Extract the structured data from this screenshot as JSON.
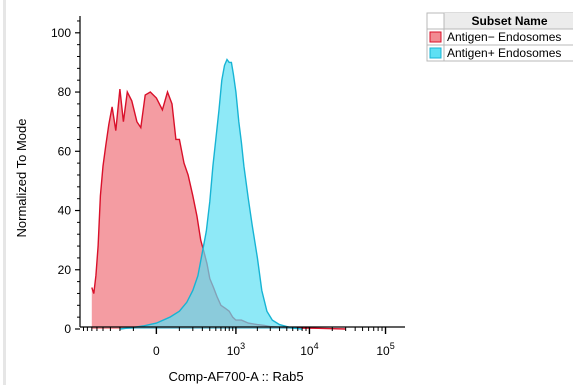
{
  "chart_data": {
    "type": "area",
    "title": "",
    "xlabel": "Comp-AF700-A :: Rab5",
    "ylabel": "Normalized To Mode",
    "xscale": "biexponential",
    "ylim": [
      0,
      105
    ],
    "x_tick_labels": [
      "0",
      "10",
      "10",
      "10"
    ],
    "x_tick_exponents": [
      "",
      "3",
      "4",
      "5"
    ],
    "x_tick_values": [
      0,
      1000,
      10000,
      100000
    ],
    "y_tick_labels": [
      "0",
      "20",
      "40",
      "60",
      "80",
      "100"
    ],
    "y_tick_values": [
      0,
      20,
      40,
      60,
      80,
      100
    ],
    "legend_header": "Subset Name",
    "legend_position": "top-right",
    "series": [
      {
        "name": "Antigen− Endosomes",
        "fill": "#f28b92",
        "stroke": "#d9102a",
        "x": [
          -600,
          -560,
          -520,
          -480,
          -440,
          -400,
          -360,
          -320,
          -280,
          -240,
          -200,
          -170,
          -140,
          -110,
          -80,
          -60,
          -40,
          -20,
          0,
          20,
          40,
          60,
          80,
          100,
          130,
          160,
          200,
          240,
          280,
          320,
          360,
          400,
          460,
          520,
          600,
          700,
          800,
          900,
          1000,
          1200,
          1500,
          2000,
          2500,
          3000,
          4000,
          5000,
          6000,
          8000,
          10000,
          15000,
          20000,
          30000
        ],
        "y": [
          14,
          12,
          18,
          28,
          45,
          55,
          62,
          69,
          75,
          67,
          81,
          70,
          80,
          77,
          70,
          68,
          79,
          80,
          78,
          74,
          80,
          76,
          64,
          64,
          56,
          52,
          45,
          38,
          30,
          26,
          22,
          17,
          14,
          11,
          8,
          7,
          6,
          4,
          3,
          3,
          2,
          1.5,
          1.2,
          0.8,
          0.6,
          0.5,
          0.4,
          0.3,
          0.3,
          0.2,
          0.1,
          0
        ]
      },
      {
        "name": "Antigen+ Endosomes",
        "fill": "#5ee0f4",
        "stroke": "#17b4d4",
        "x": [
          -200,
          -100,
          -50,
          0,
          50,
          100,
          150,
          200,
          250,
          300,
          350,
          400,
          450,
          500,
          560,
          620,
          680,
          740,
          800,
          860,
          920,
          1000,
          1100,
          1200,
          1300,
          1500,
          1700,
          2000,
          2300,
          2700,
          3200,
          4000,
          5000,
          6000,
          8000
        ],
        "y": [
          0,
          0.5,
          1,
          2,
          4,
          6,
          9,
          13,
          18,
          26,
          33,
          43,
          55,
          64,
          74,
          84,
          89,
          91,
          90,
          90,
          86,
          80,
          70,
          63,
          55,
          44,
          35,
          24,
          13,
          6,
          3,
          1.5,
          0.8,
          0.3,
          0
        ]
      }
    ]
  }
}
